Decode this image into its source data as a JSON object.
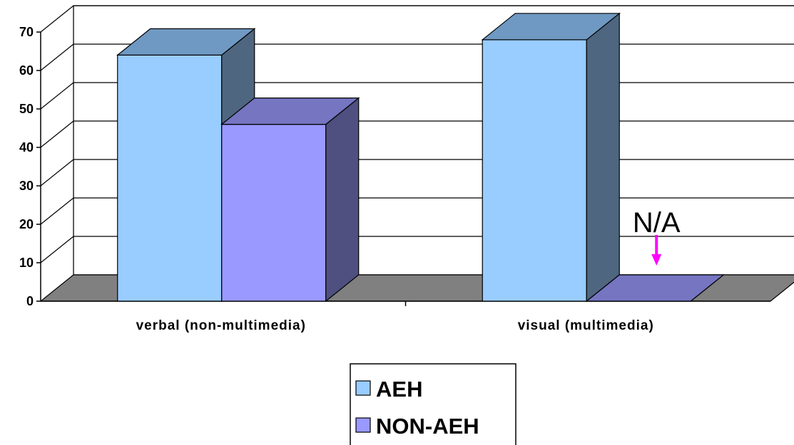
{
  "chart_data": {
    "type": "bar",
    "title": "",
    "xlabel": "",
    "ylabel": "",
    "ylim": [
      0,
      70
    ],
    "yticks": [
      0,
      10,
      20,
      30,
      40,
      50,
      60,
      70
    ],
    "grid": true,
    "legend_position": "bottom-center",
    "categories": [
      "verbal (non-multimedia)",
      "visual (multimedia)"
    ],
    "series": [
      {
        "name": "AEH",
        "values": [
          64,
          68
        ],
        "color": "#99ccff",
        "top_color": "#6f99c2",
        "side_color": "#4f6680"
      },
      {
        "name": "NON-AEH",
        "values": [
          46,
          0
        ],
        "color": "#9999ff",
        "top_color": "#7575c2",
        "side_color": "#4f4f80"
      }
    ],
    "annotations": [
      {
        "text": "N/A",
        "series": "NON-AEH",
        "category": "visual (multimedia)",
        "arrow_color": "#ff00ff"
      }
    ]
  }
}
